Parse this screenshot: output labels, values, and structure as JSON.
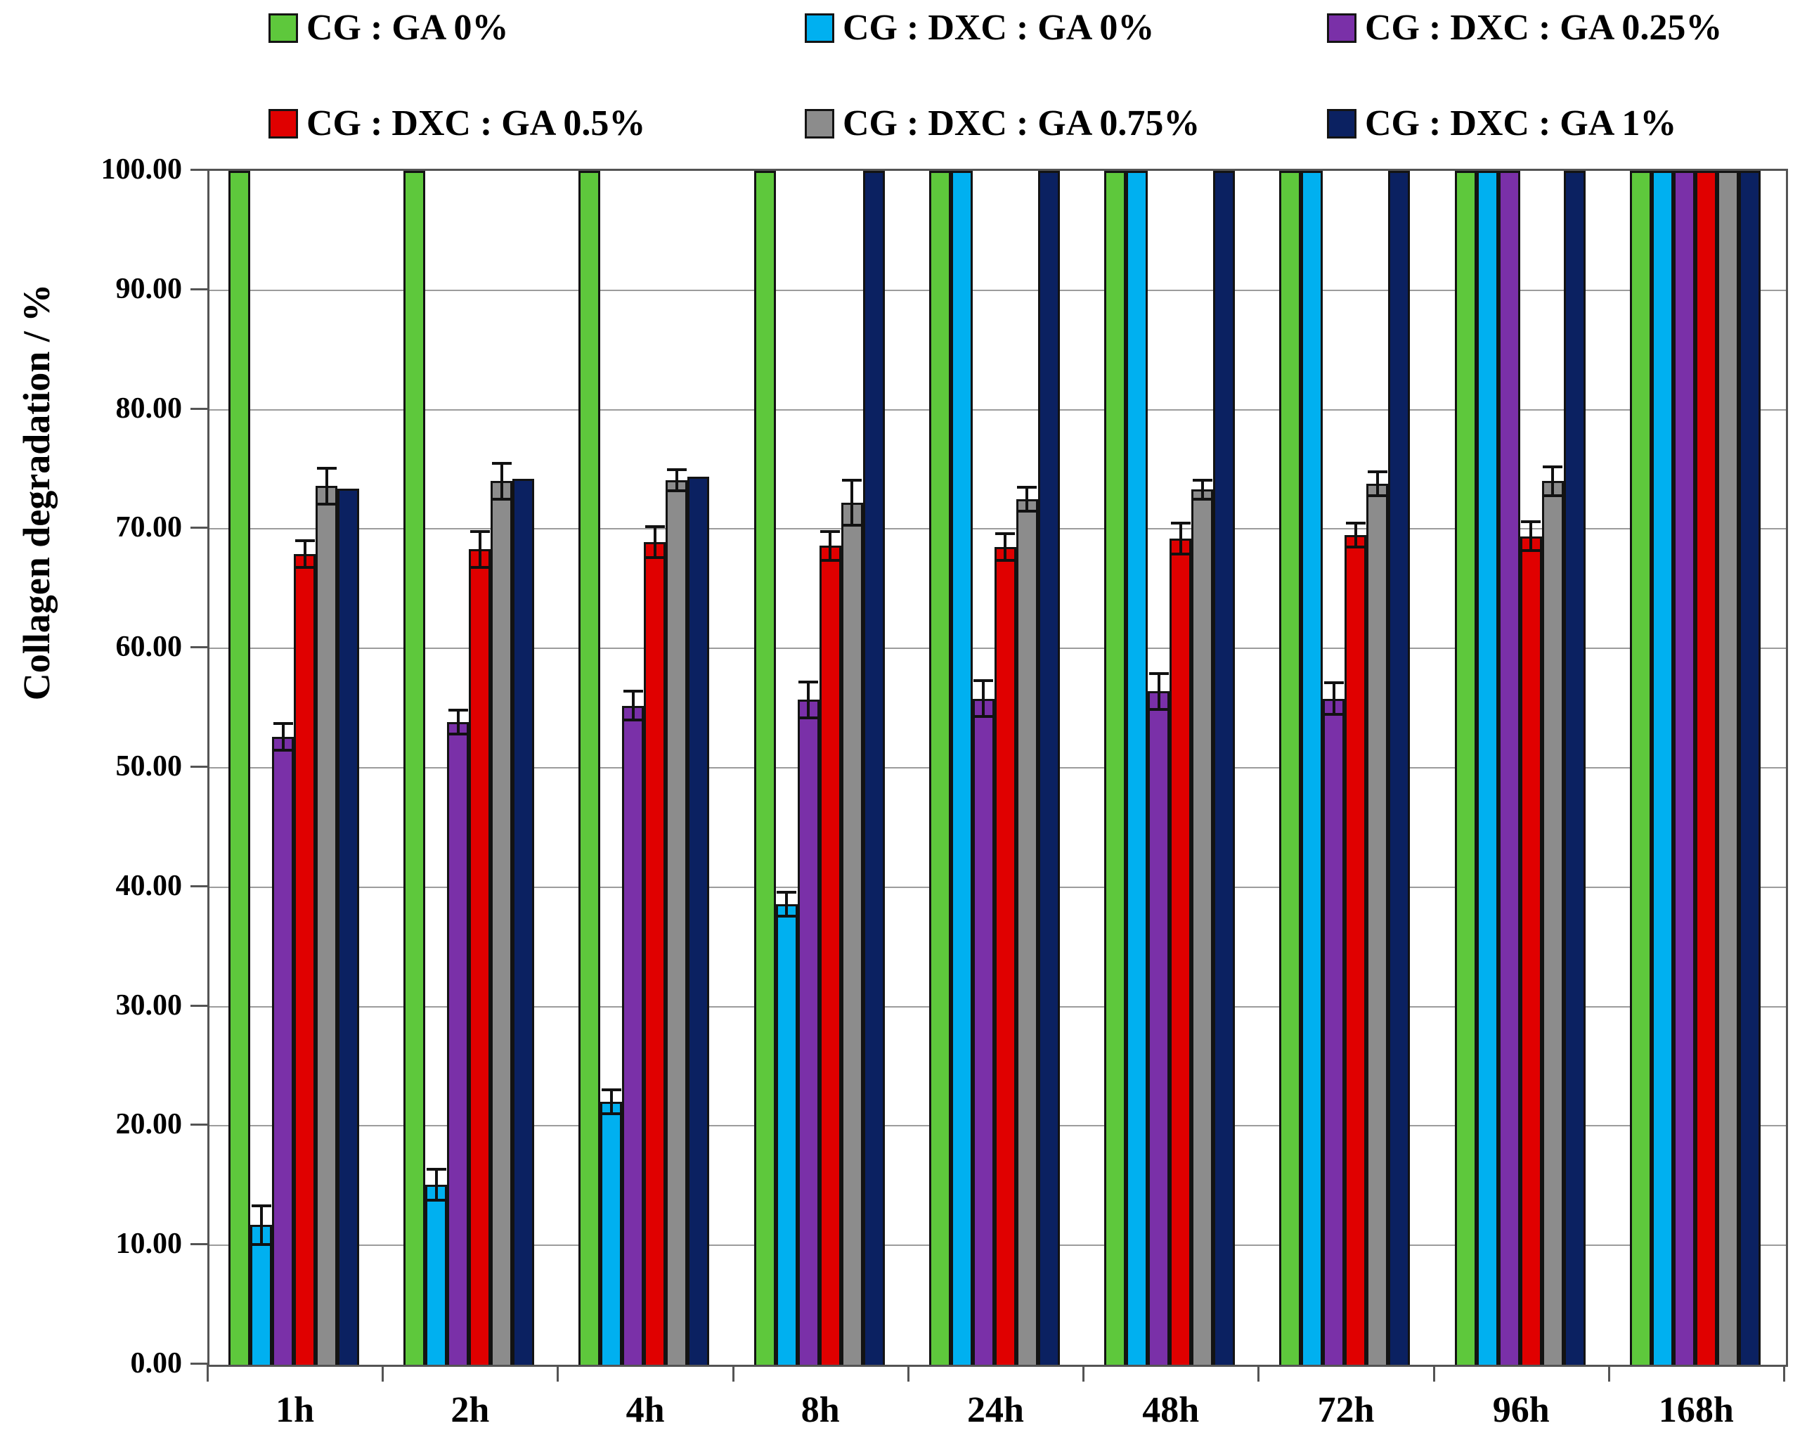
{
  "chart_data": {
    "type": "bar",
    "title": "",
    "xlabel": "",
    "ylabel": "Collagen degradation / %",
    "ylim": [
      0,
      100
    ],
    "ytick_step": 10,
    "ytick_labels": [
      "100.00",
      "90.00",
      "80.00",
      "70.00",
      "60.00",
      "50.00",
      "40.00",
      "30.00",
      "20.00",
      "10.00",
      "0.00"
    ],
    "grid": true,
    "legend_position": "top",
    "categories": [
      "1h",
      "2h",
      "4h",
      "8h",
      "24h",
      "48h",
      "72h",
      "96h",
      "168h"
    ],
    "series": [
      {
        "name": "CG : GA 0%",
        "color": "#5EC83C",
        "values": [
          100,
          100,
          100,
          100,
          100,
          100,
          100,
          100,
          100
        ],
        "errors": [
          null,
          null,
          null,
          null,
          null,
          null,
          null,
          null,
          null
        ]
      },
      {
        "name": "CG : DXC : GA 0%",
        "color": "#00B0F0",
        "values": [
          11.7,
          15.1,
          22.0,
          38.6,
          100,
          100,
          100,
          100,
          100
        ],
        "errors": [
          1.6,
          1.3,
          1.0,
          1.0,
          null,
          null,
          null,
          null,
          null
        ]
      },
      {
        "name": "CG : DXC : GA 0.25%",
        "color": "#7A30A8",
        "values": [
          52.6,
          53.8,
          55.2,
          55.7,
          55.8,
          56.4,
          55.8,
          100,
          100
        ],
        "errors": [
          1.1,
          1.0,
          1.2,
          1.5,
          1.5,
          1.5,
          1.3,
          null,
          null
        ]
      },
      {
        "name": "CG : DXC : GA 0.5%",
        "color": "#E00000",
        "values": [
          67.9,
          68.3,
          68.9,
          68.6,
          68.5,
          69.2,
          69.5,
          69.4,
          100
        ],
        "errors": [
          1.1,
          1.5,
          1.3,
          1.2,
          1.1,
          1.3,
          1.0,
          1.2,
          null
        ]
      },
      {
        "name": "CG : DXC : GA 0.75%",
        "color": "#8C8C8C",
        "values": [
          73.6,
          74.0,
          74.1,
          72.2,
          72.5,
          73.3,
          73.8,
          74.0,
          100
        ],
        "errors": [
          1.5,
          1.5,
          0.9,
          1.9,
          1.0,
          0.8,
          1.0,
          1.2,
          null
        ]
      },
      {
        "name": "CG : DXC : GA 1%",
        "color": "#0B2161",
        "values": [
          73.4,
          74.2,
          74.4,
          100,
          100,
          100,
          100,
          100,
          100
        ],
        "errors": [
          null,
          null,
          null,
          null,
          null,
          null,
          null,
          null,
          null
        ]
      }
    ]
  }
}
